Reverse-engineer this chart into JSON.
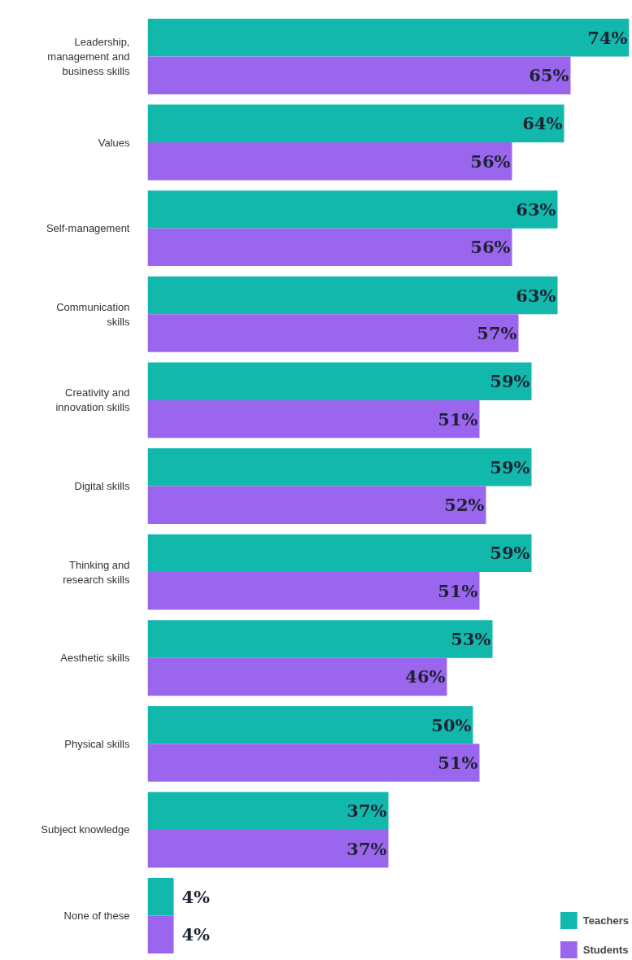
{
  "chart_data": {
    "type": "bar",
    "orientation": "horizontal",
    "categories": [
      "Leadership, management and business skills",
      "Values",
      "Self-management",
      "Communication skills",
      "Creativity and innovation skills",
      "Digital skills",
      "Thinking and research skills",
      "Aesthetic skills",
      "Physical skills",
      "Subject knowledge",
      "None of these"
    ],
    "series": [
      {
        "name": "Teachers",
        "color": "#12b8ac",
        "values": [
          74,
          64,
          63,
          63,
          59,
          59,
          59,
          53,
          50,
          37,
          4
        ],
        "value_labels": [
          "74%",
          "64%",
          "63%",
          "63%",
          "59%",
          "59%",
          "59%",
          "53%",
          "50%",
          "37%",
          "4%"
        ]
      },
      {
        "name": "Students",
        "color": "#9b66ee",
        "values": [
          65,
          56,
          56,
          57,
          51,
          52,
          51,
          46,
          51,
          37,
          4
        ],
        "value_labels": [
          "65%",
          "56%",
          "56%",
          "57%",
          "51%",
          "52%",
          "51%",
          "46%",
          "51%",
          "37%",
          "4%"
        ]
      }
    ],
    "xlim": [
      0,
      74
    ],
    "tick_labels": "y",
    "grid": false,
    "legend": "bottom right"
  }
}
